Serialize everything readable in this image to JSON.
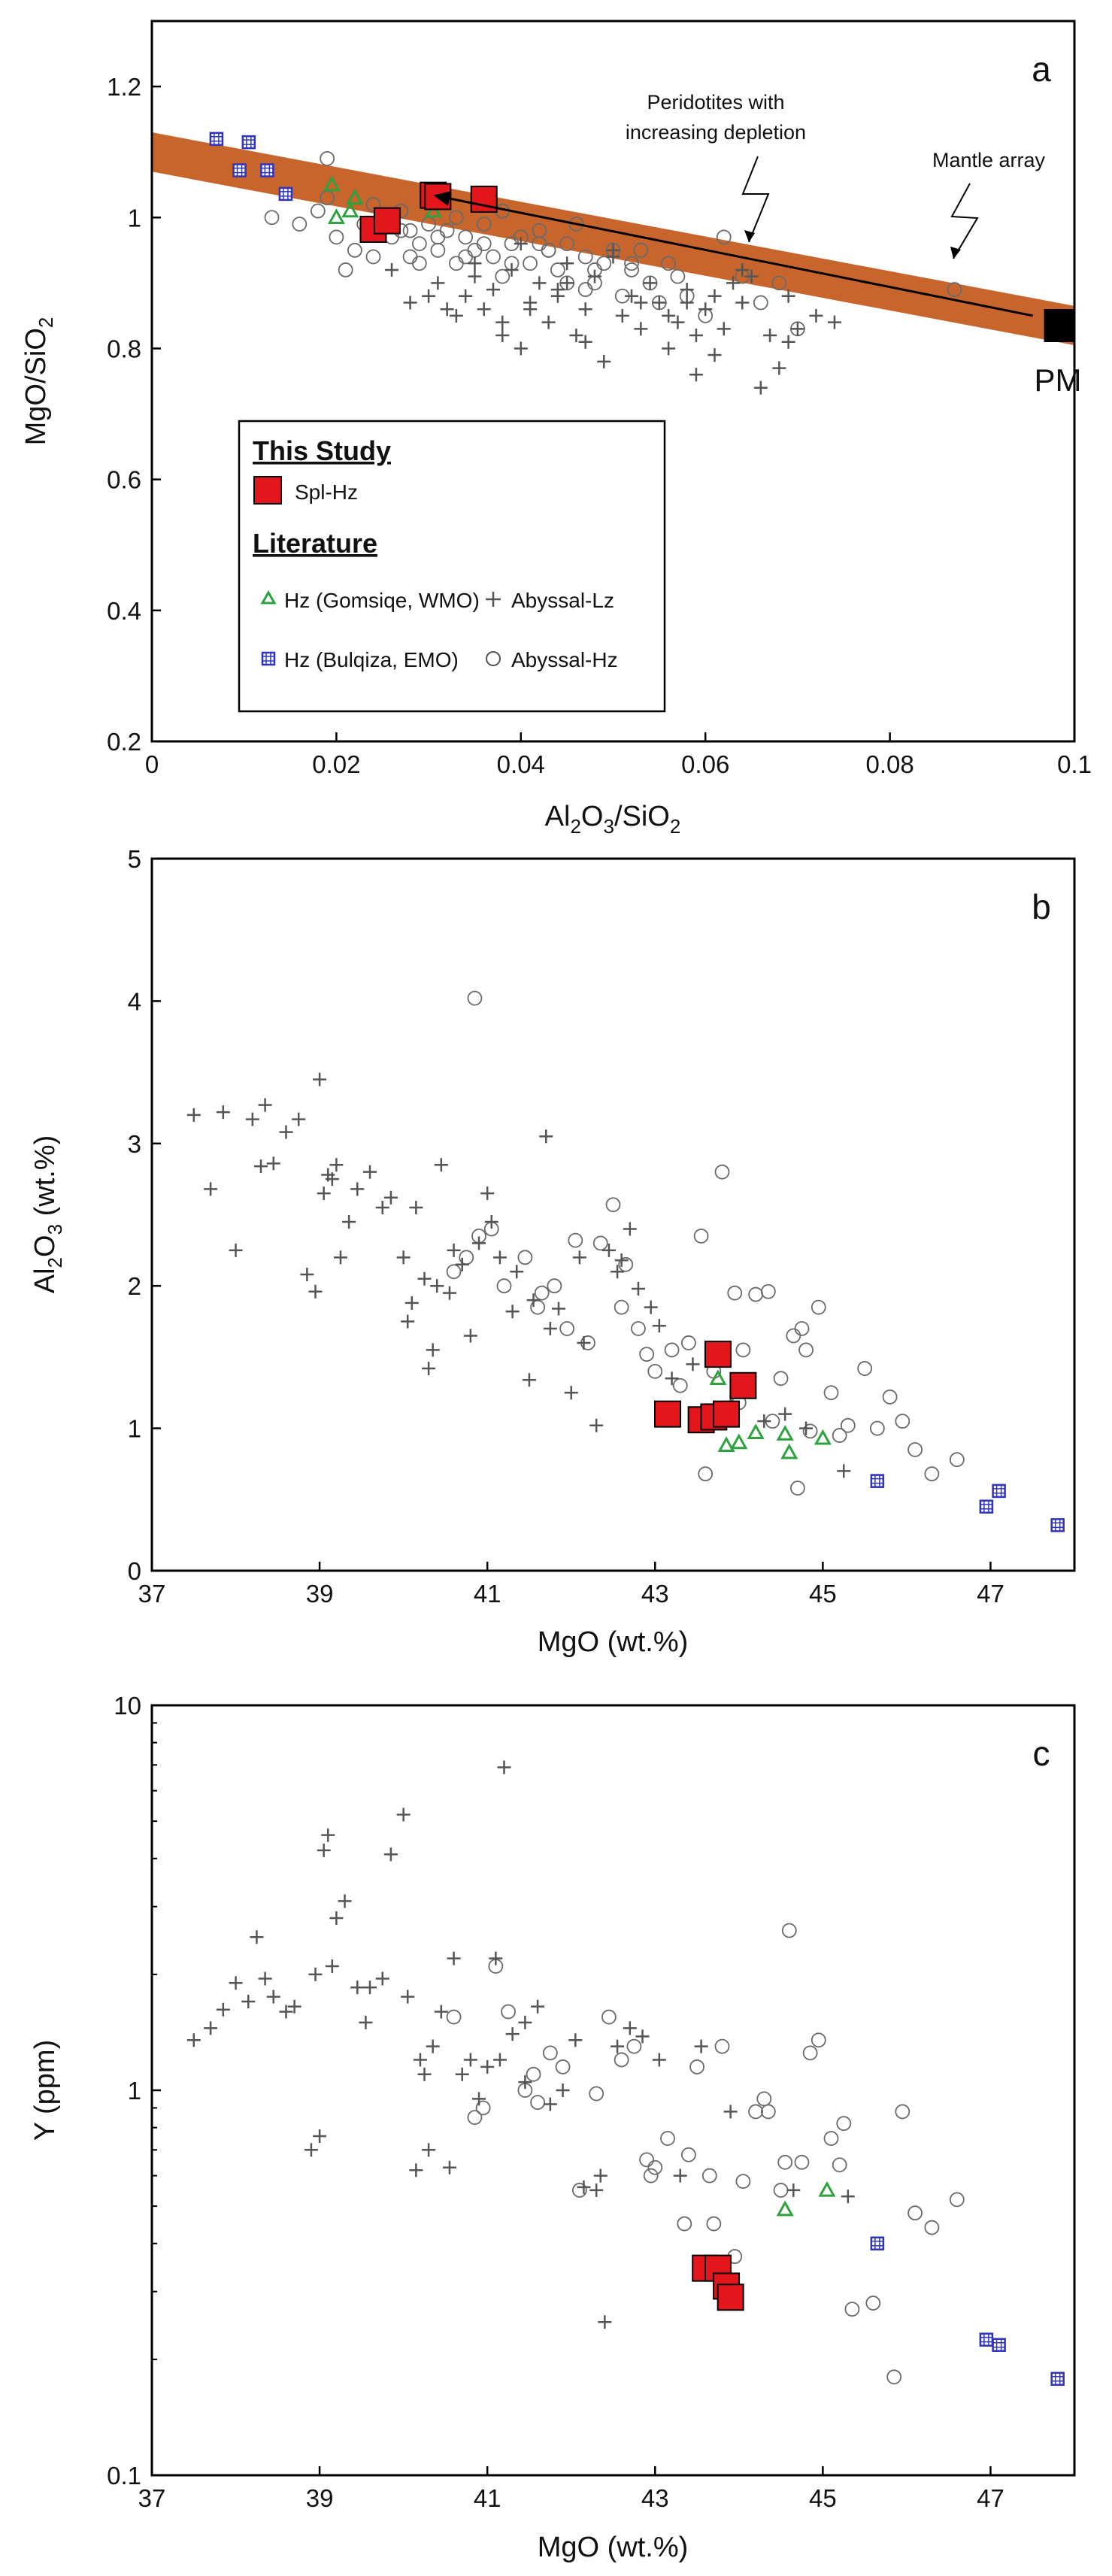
{
  "figure": {
    "description_colors": {
      "band": "#C8652C",
      "spl": "#E3171B",
      "gomsiqe": "#2DA23E",
      "bulqiza": "#2E33C2",
      "abyssal": "#555555"
    }
  },
  "chart_data": [
    {
      "id": "a",
      "type": "scatter",
      "panel_label": "a",
      "xlabel_main": "Al",
      "xlabel_sub1": "2",
      "xlabel_mid": "O",
      "xlabel_sub2": "3",
      "xlabel_tail": "/SiO",
      "xlabel_sub3": "2",
      "ylabel_main": "MgO/SiO",
      "ylabel_sub": "2",
      "xlim": [
        0,
        0.1
      ],
      "ylim": [
        0.2,
        1.3
      ],
      "xticks": [
        0,
        0.02,
        0.04,
        0.06,
        0.08,
        0.1
      ],
      "xtick_labels": [
        "0",
        "0.02",
        "0.04",
        "0.06",
        "0.08",
        "0.1"
      ],
      "yticks": [
        0.2,
        0.4,
        0.6,
        0.8,
        1.0,
        1.2
      ],
      "ytick_labels": [
        "0.2",
        "0.4",
        "0.6",
        "0.8",
        "1",
        "1.2"
      ],
      "mantle_array": {
        "label": "Mantle array",
        "x": [
          0,
          0.1
        ],
        "y": [
          1.1,
          0.835
        ],
        "half_width": 0.03
      },
      "depletion_trend": {
        "label_line1": "Peridotites with",
        "label_line2": "increasing depletion",
        "x": [
          0.0955,
          0.0305
        ],
        "y": [
          0.85,
          1.034
        ]
      },
      "pm": {
        "label": "PM",
        "x": 0.0985,
        "y": 0.835
      },
      "legend": {
        "heading1": "This Study",
        "spl": "Spl-Hz",
        "heading2": "Literature",
        "gomsiqe": "Hz (Gomsiqe, WMO)",
        "bulqiza": "Hz (Bulqiza, EMO)",
        "lz": "Abyssal-Lz",
        "hz": "Abyssal-Hz"
      },
      "series": [
        {
          "name": "Spl-Hz",
          "marker": "square-red",
          "x": [
            0.024,
            0.0255,
            0.0305,
            0.031,
            0.036
          ],
          "y": [
            0.982,
            0.995,
            1.034,
            1.032,
            1.028
          ]
        },
        {
          "name": "Hz (Gomsiqe, WMO)",
          "marker": "triangle-green",
          "x": [
            0.0195,
            0.02,
            0.0215,
            0.022,
            0.0305
          ],
          "y": [
            1.05,
            1.0,
            1.01,
            1.03,
            1.01
          ]
        },
        {
          "name": "Hz (Bulqiza, EMO)",
          "marker": "square-blue",
          "x": [
            0.007,
            0.0105,
            0.0095,
            0.0125,
            0.0145
          ],
          "y": [
            1.12,
            1.115,
            1.072,
            1.072,
            1.036
          ]
        },
        {
          "name": "Abyssal-Lz",
          "marker": "plus",
          "x": [
            0.026,
            0.028,
            0.031,
            0.033,
            0.034,
            0.035,
            0.036,
            0.037,
            0.038,
            0.039,
            0.04,
            0.041,
            0.042,
            0.043,
            0.044,
            0.045,
            0.046,
            0.047,
            0.048,
            0.049,
            0.05,
            0.051,
            0.052,
            0.053,
            0.054,
            0.055,
            0.056,
            0.057,
            0.058,
            0.059,
            0.06,
            0.061,
            0.062,
            0.063,
            0.064,
            0.066,
            0.067,
            0.068,
            0.069,
            0.07,
            0.072,
            0.074,
            0.03,
            0.035,
            0.04,
            0.045,
            0.05,
            0.056,
            0.059,
            0.065,
            0.041,
            0.047,
            0.053,
            0.061,
            0.069,
            0.044,
            0.038,
            0.032,
            0.058,
            0.064
          ],
          "y": [
            0.92,
            0.87,
            0.9,
            0.85,
            0.88,
            0.91,
            0.86,
            0.89,
            0.84,
            0.92,
            0.8,
            0.87,
            0.9,
            0.84,
            0.88,
            0.93,
            0.82,
            0.86,
            0.91,
            0.78,
            0.95,
            0.85,
            0.88,
            0.83,
            0.9,
            0.87,
            0.8,
            0.84,
            0.89,
            0.76,
            0.86,
            0.88,
            0.83,
            0.9,
            0.87,
            0.74,
            0.82,
            0.77,
            0.88,
            0.83,
            0.85,
            0.84,
            0.88,
            0.93,
            0.96,
            0.9,
            0.94,
            0.85,
            0.82,
            0.91,
            0.86,
            0.81,
            0.87,
            0.79,
            0.81,
            0.89,
            0.82,
            0.86,
            0.87,
            0.92
          ]
        },
        {
          "name": "Abyssal-Hz",
          "marker": "circle",
          "x": [
            0.013,
            0.016,
            0.018,
            0.019,
            0.02,
            0.021,
            0.022,
            0.023,
            0.024,
            0.025,
            0.026,
            0.027,
            0.028,
            0.029,
            0.03,
            0.031,
            0.032,
            0.033,
            0.034,
            0.035,
            0.036,
            0.037,
            0.038,
            0.039,
            0.04,
            0.041,
            0.042,
            0.043,
            0.044,
            0.045,
            0.046,
            0.047,
            0.048,
            0.049,
            0.05,
            0.051,
            0.052,
            0.053,
            0.054,
            0.055,
            0.056,
            0.058,
            0.06,
            0.062,
            0.064,
            0.066,
            0.068,
            0.07,
            0.087,
            0.027,
            0.029,
            0.031,
            0.033,
            0.036,
            0.039,
            0.042,
            0.045,
            0.048,
            0.019,
            0.024,
            0.028,
            0.034,
            0.038,
            0.043,
            0.047,
            0.052,
            0.057
          ],
          "y": [
            1.0,
            0.99,
            1.01,
            1.09,
            0.97,
            0.92,
            0.95,
            0.99,
            1.02,
            1.0,
            0.97,
            0.98,
            0.94,
            0.96,
            0.99,
            0.95,
            0.98,
            0.93,
            0.97,
            0.95,
            0.99,
            0.94,
            0.91,
            0.96,
            0.97,
            0.93,
            0.98,
            0.95,
            0.92,
            0.96,
            0.99,
            0.94,
            0.9,
            0.93,
            0.95,
            0.88,
            0.92,
            0.95,
            0.9,
            0.87,
            0.93,
            0.88,
            0.85,
            0.97,
            0.91,
            0.87,
            0.9,
            0.83,
            0.89,
            1.01,
            0.93,
            0.97,
            1.0,
            0.96,
            0.93,
            0.96,
            0.9,
            0.92,
            1.03,
            0.94,
            0.98,
            0.94,
            1.01,
            0.95,
            0.89,
            0.93,
            0.91
          ]
        }
      ]
    },
    {
      "id": "b",
      "type": "scatter",
      "panel_label": "b",
      "xlabel": "MgO (wt.%)",
      "ylabel_main": "Al",
      "ylabel_sub": "2",
      "ylabel_tail1": "O",
      "ylabel_sub2": "3",
      "ylabel_tail2": " (wt.%)",
      "xlim": [
        37,
        48
      ],
      "ylim": [
        0,
        5
      ],
      "xticks": [
        37,
        39,
        41,
        43,
        45,
        47
      ],
      "xtick_labels": [
        "37",
        "39",
        "41",
        "43",
        "45",
        "47"
      ],
      "yticks": [
        0,
        1,
        2,
        3,
        4,
        5
      ],
      "ytick_labels": [
        "0",
        "1",
        "2",
        "3",
        "4",
        "5"
      ],
      "series": [
        {
          "name": "Spl-Hz",
          "marker": "square-red",
          "x": [
            43.15,
            43.55,
            43.7,
            43.75,
            43.85,
            44.05
          ],
          "y": [
            1.1,
            1.06,
            1.08,
            1.52,
            1.1,
            1.3
          ]
        },
        {
          "name": "Hz (Gomsiqe, WMO)",
          "marker": "triangle-green",
          "x": [
            43.75,
            43.85,
            44.0,
            44.2,
            44.55,
            44.6,
            45.0
          ],
          "y": [
            1.35,
            0.88,
            0.9,
            0.97,
            0.96,
            0.83,
            0.93
          ]
        },
        {
          "name": "Hz (Bulqiza, EMO)",
          "marker": "square-blue",
          "x": [
            45.65,
            46.95,
            47.1,
            47.8
          ],
          "y": [
            0.63,
            0.45,
            0.56,
            0.32
          ]
        },
        {
          "name": "Abyssal-Lz",
          "marker": "plus",
          "x": [
            37.5,
            37.7,
            37.85,
            38.0,
            38.2,
            38.3,
            38.35,
            38.45,
            38.6,
            38.75,
            38.95,
            39.0,
            39.05,
            39.1,
            39.15,
            39.2,
            39.35,
            39.45,
            39.6,
            39.75,
            39.85,
            40.0,
            40.05,
            40.15,
            40.25,
            40.3,
            40.35,
            40.45,
            40.55,
            40.6,
            40.7,
            40.8,
            40.9,
            41.0,
            41.05,
            41.15,
            41.3,
            41.5,
            41.55,
            41.7,
            41.75,
            41.85,
            42.0,
            42.15,
            42.3,
            42.45,
            42.55,
            42.7,
            42.8,
            42.95,
            43.05,
            43.2,
            43.45,
            43.7,
            43.9,
            44.3,
            44.55,
            44.8,
            45.25,
            38.85,
            39.25,
            40.4,
            41.35,
            42.1,
            42.6,
            40.1
          ],
          "y": [
            3.2,
            2.68,
            3.22,
            2.25,
            3.17,
            2.84,
            3.27,
            2.86,
            3.08,
            3.17,
            1.96,
            3.45,
            2.65,
            2.78,
            2.75,
            2.85,
            2.45,
            2.68,
            2.8,
            2.55,
            2.62,
            2.2,
            1.75,
            2.55,
            2.05,
            1.42,
            1.55,
            2.85,
            1.95,
            2.25,
            2.15,
            1.65,
            2.3,
            2.65,
            2.45,
            2.2,
            1.82,
            1.34,
            1.9,
            3.05,
            1.7,
            1.84,
            1.25,
            1.6,
            1.02,
            2.25,
            2.1,
            2.4,
            1.98,
            1.85,
            1.72,
            1.35,
            1.45,
            1.55,
            1.18,
            1.05,
            1.1,
            1.0,
            0.7,
            2.08,
            2.2,
            2.0,
            2.1,
            2.2,
            2.18,
            1.88
          ]
        },
        {
          "name": "Abyssal-Hz",
          "marker": "circle",
          "x": [
            40.85,
            40.6,
            40.75,
            40.9,
            41.05,
            41.2,
            41.45,
            41.6,
            41.65,
            41.8,
            42.05,
            42.2,
            42.35,
            42.5,
            42.65,
            42.8,
            43.0,
            43.2,
            43.4,
            43.55,
            43.7,
            43.8,
            43.95,
            44.05,
            44.2,
            44.35,
            44.5,
            44.65,
            44.75,
            44.85,
            44.95,
            45.1,
            45.3,
            45.5,
            45.65,
            45.8,
            45.95,
            46.1,
            46.3,
            46.6,
            43.6,
            44.0,
            44.4,
            44.7,
            45.2,
            42.9,
            43.3,
            43.75,
            41.95,
            42.6,
            44.8
          ],
          "y": [
            4.02,
            2.1,
            2.2,
            2.35,
            2.4,
            2.0,
            2.2,
            1.85,
            1.95,
            2.0,
            2.32,
            1.6,
            2.3,
            2.57,
            2.15,
            1.7,
            1.4,
            1.55,
            1.6,
            2.35,
            1.4,
            2.8,
            1.95,
            1.55,
            1.94,
            1.96,
            1.35,
            1.65,
            1.7,
            0.98,
            1.85,
            1.25,
            1.02,
            1.42,
            1.0,
            1.22,
            1.05,
            0.85,
            0.68,
            0.78,
            0.68,
            1.18,
            1.05,
            0.58,
            0.95,
            1.52,
            1.3,
            1.12,
            1.7,
            1.85,
            1.55
          ]
        }
      ]
    },
    {
      "id": "c",
      "type": "scatter",
      "panel_label": "c",
      "xlabel": "MgO (wt.%)",
      "ylabel": "Y (ppm)",
      "yscale": "log",
      "xlim": [
        37,
        48
      ],
      "ylim": [
        0.1,
        10
      ],
      "xticks": [
        37,
        39,
        41,
        43,
        45,
        47
      ],
      "xtick_labels": [
        "37",
        "39",
        "41",
        "43",
        "45",
        "47"
      ],
      "yticks": [
        0.1,
        1,
        10
      ],
      "ytick_labels": [
        "0.1",
        "1",
        "10"
      ],
      "series": [
        {
          "name": "Spl-Hz",
          "marker": "square-red",
          "x": [
            43.6,
            43.75,
            43.85,
            43.9
          ],
          "y": [
            0.345,
            0.345,
            0.31,
            0.29
          ]
        },
        {
          "name": "Hz (Gomsiqe, WMO)",
          "marker": "triangle-green",
          "x": [
            44.55,
            45.05
          ],
          "y": [
            0.49,
            0.55
          ]
        },
        {
          "name": "Hz (Bulqiza, EMO)",
          "marker": "square-blue",
          "x": [
            45.65,
            46.95,
            47.1,
            47.8
          ],
          "y": [
            0.4,
            0.225,
            0.218,
            0.178
          ]
        },
        {
          "name": "Abyssal-Lz",
          "marker": "plus",
          "x": [
            37.5,
            37.7,
            37.85,
            38.0,
            38.15,
            38.25,
            38.35,
            38.45,
            38.6,
            38.7,
            38.9,
            39.0,
            39.05,
            39.1,
            39.2,
            39.3,
            39.45,
            39.55,
            39.75,
            39.85,
            40.0,
            40.05,
            40.15,
            40.2,
            40.3,
            40.45,
            40.55,
            40.6,
            40.7,
            40.8,
            40.9,
            41.0,
            41.1,
            41.2,
            41.3,
            41.45,
            41.6,
            41.75,
            41.9,
            42.05,
            42.15,
            42.3,
            42.4,
            42.55,
            42.7,
            42.85,
            43.05,
            43.3,
            43.55,
            43.9,
            44.65,
            45.3,
            38.95,
            39.15,
            40.35,
            41.15,
            41.45,
            42.35,
            40.25,
            39.6
          ],
          "y": [
            1.35,
            1.45,
            1.62,
            1.9,
            1.7,
            2.5,
            1.95,
            1.75,
            1.6,
            1.65,
            0.7,
            0.76,
            4.2,
            4.6,
            2.8,
            3.1,
            1.85,
            1.5,
            1.95,
            4.1,
            5.2,
            1.75,
            0.62,
            1.2,
            0.7,
            1.6,
            0.63,
            2.2,
            1.1,
            1.2,
            0.95,
            1.15,
            2.2,
            6.9,
            1.4,
            1.5,
            1.65,
            0.92,
            1.0,
            1.35,
            0.56,
            0.55,
            0.25,
            1.3,
            1.45,
            1.38,
            1.2,
            0.6,
            1.3,
            0.88,
            0.55,
            0.53,
            2.0,
            2.1,
            1.3,
            1.2,
            1.05,
            0.6,
            1.1,
            1.85
          ]
        },
        {
          "name": "Abyssal-Hz",
          "marker": "circle",
          "x": [
            40.6,
            40.85,
            40.95,
            41.1,
            41.25,
            41.45,
            41.6,
            41.75,
            41.9,
            42.1,
            42.3,
            42.45,
            42.6,
            42.75,
            42.9,
            43.0,
            43.15,
            43.35,
            43.5,
            43.65,
            43.8,
            43.95,
            44.05,
            44.2,
            44.35,
            44.5,
            44.6,
            44.75,
            44.85,
            44.95,
            45.1,
            45.25,
            45.35,
            45.6,
            45.85,
            45.95,
            46.1,
            46.3,
            46.6,
            44.55,
            43.4,
            42.95,
            44.3,
            45.2,
            43.7,
            41.55
          ],
          "y": [
            1.55,
            0.85,
            0.9,
            2.1,
            1.6,
            1.0,
            0.93,
            1.25,
            1.15,
            0.55,
            0.98,
            1.55,
            1.2,
            1.3,
            0.66,
            0.63,
            0.75,
            0.45,
            1.15,
            0.6,
            1.3,
            0.37,
            0.58,
            0.88,
            0.88,
            0.55,
            2.6,
            0.65,
            1.25,
            1.35,
            0.75,
            0.82,
            0.27,
            0.28,
            0.18,
            0.88,
            0.48,
            0.44,
            0.52,
            0.65,
            0.68,
            0.6,
            0.95,
            0.64,
            0.45,
            1.1
          ]
        }
      ]
    }
  ]
}
